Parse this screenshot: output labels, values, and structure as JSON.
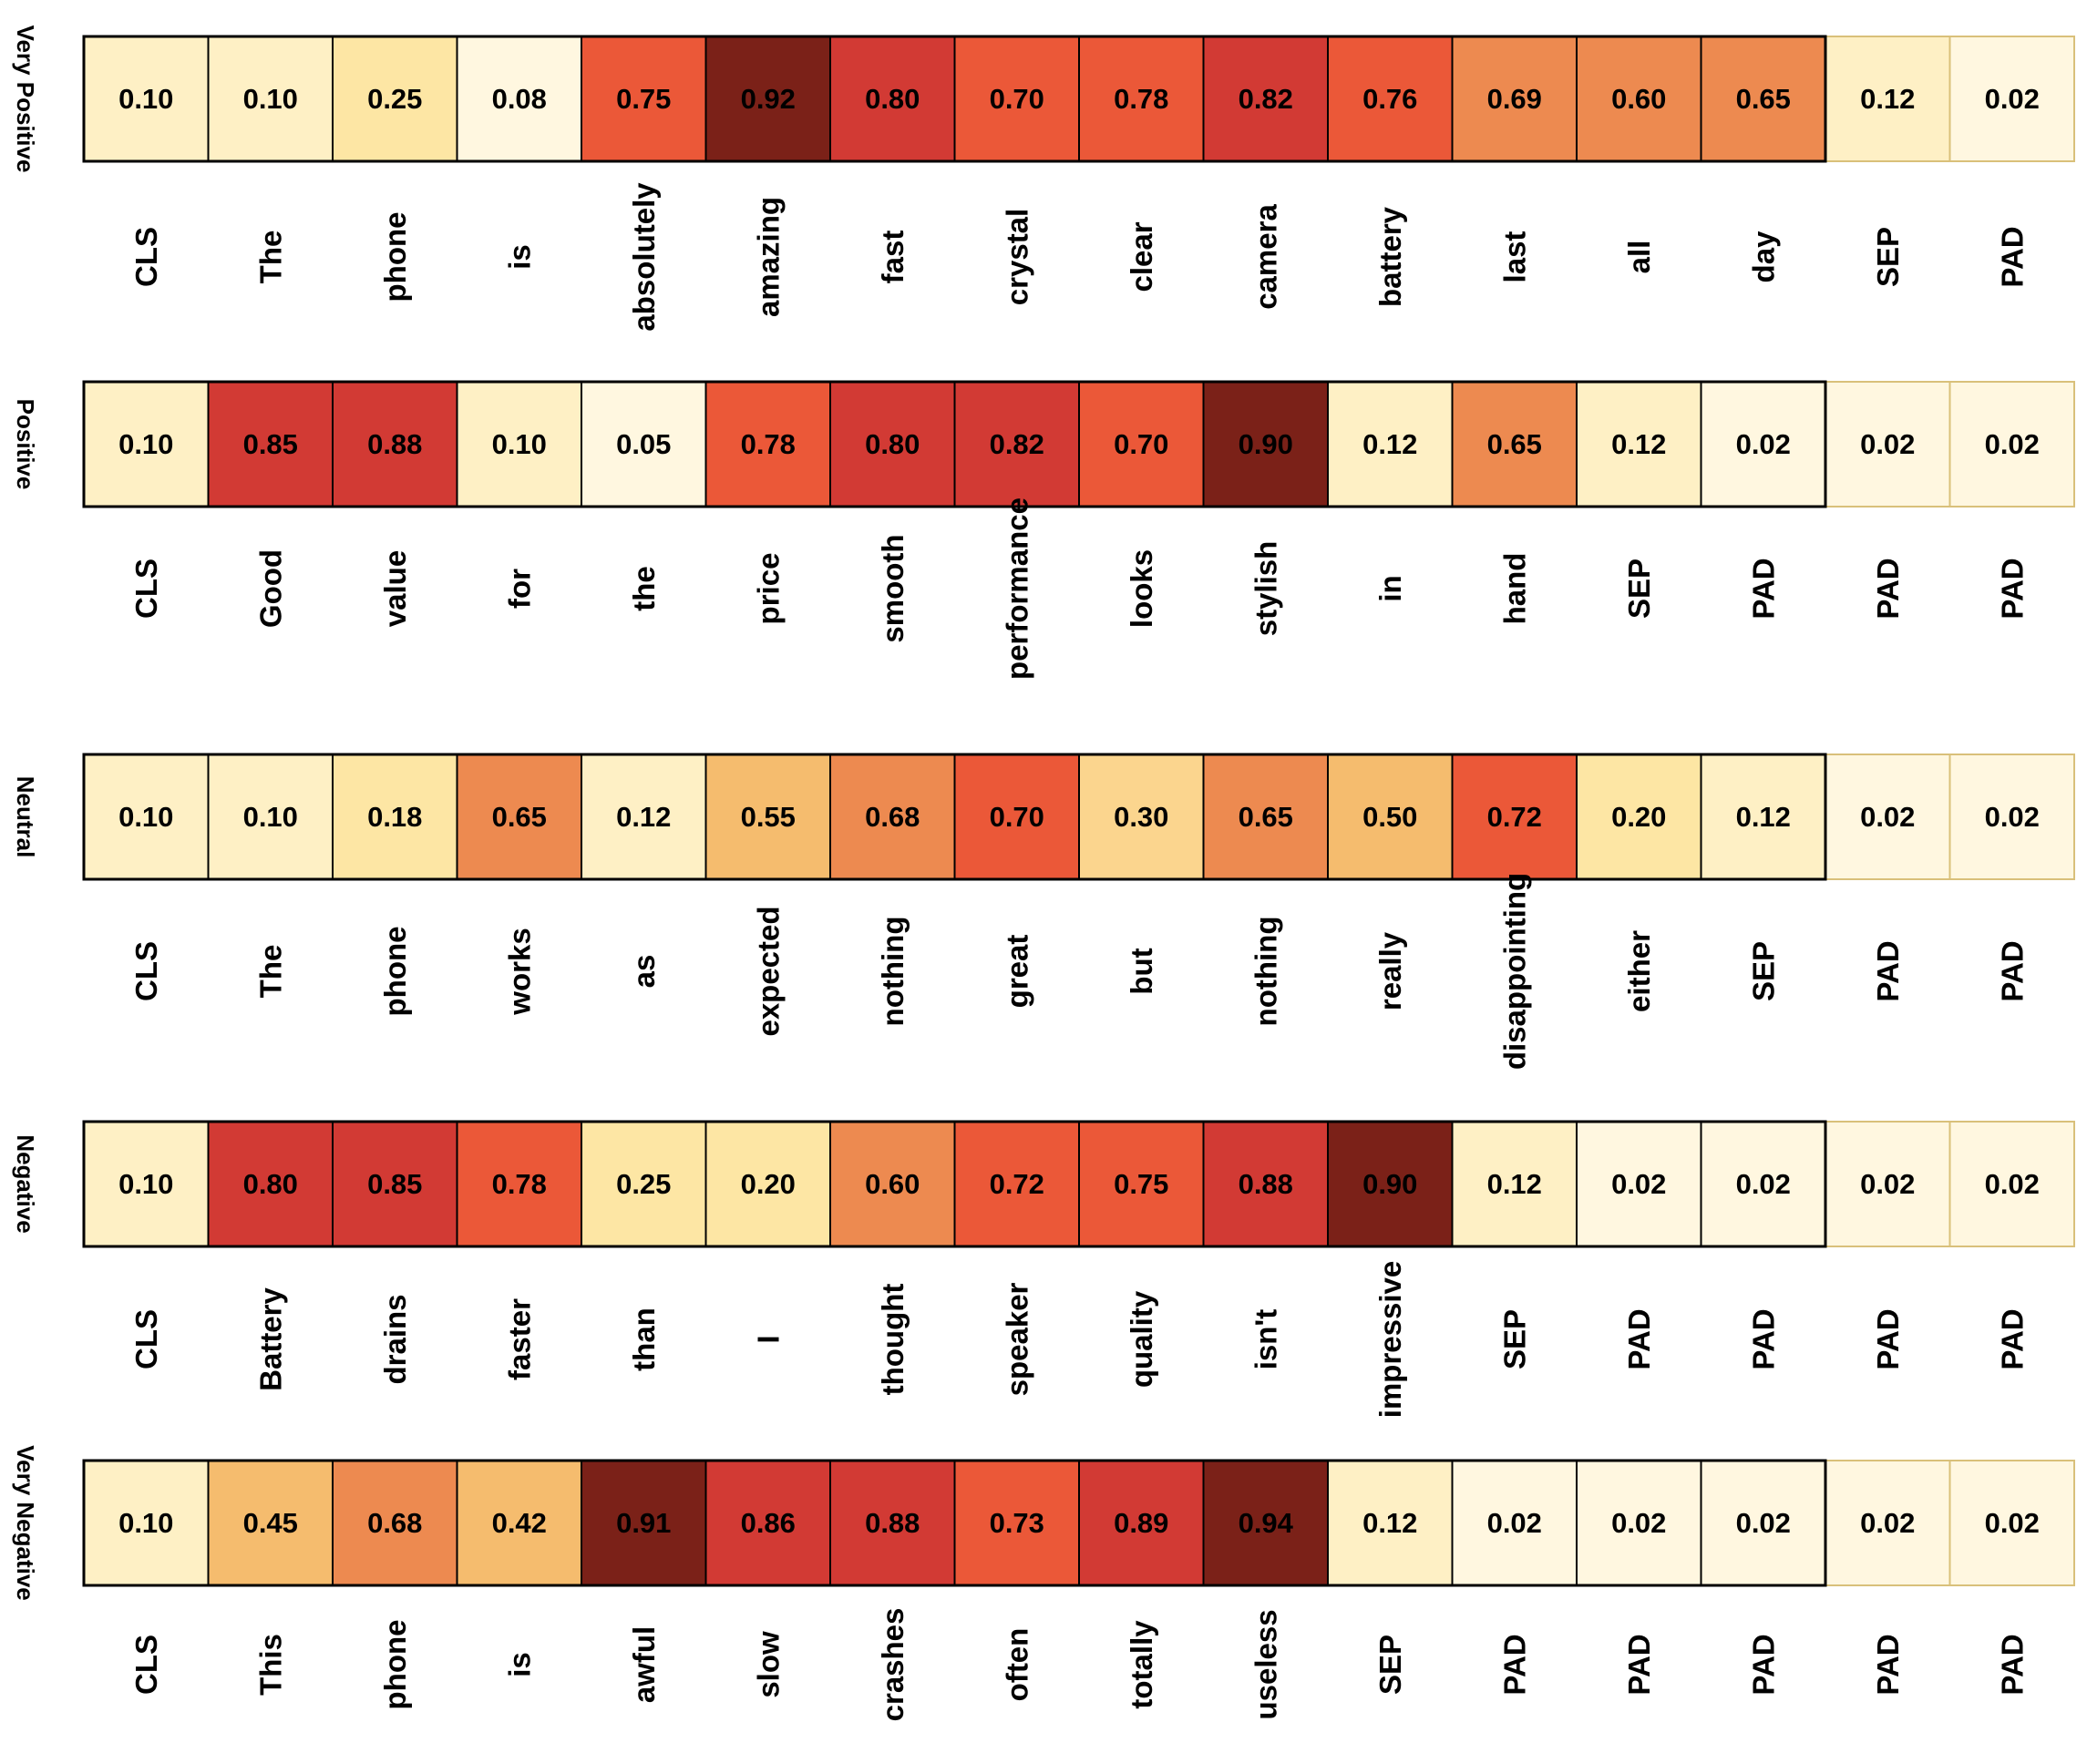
{
  "chart_data": {
    "type": "heatmap",
    "title": "",
    "colors": [
      "#fff7e0",
      "#fef0c5",
      "#fde6a4",
      "#fbd58e",
      "#f5bc6e",
      "#ed8a50",
      "#eb5838",
      "#d23a34",
      "#7b2118"
    ],
    "rows": [
      {
        "label": "Very Positive",
        "tokens": [
          "CLS",
          "The",
          "phone",
          "is",
          "absolutely",
          "amazing",
          "fast",
          "crystal",
          "clear",
          "camera",
          "battery",
          "last",
          "all",
          "day",
          "SEP",
          "PAD"
        ],
        "values": [
          0.1,
          0.1,
          0.25,
          0.08,
          0.75,
          0.92,
          0.8,
          0.7,
          0.78,
          0.82,
          0.76,
          0.69,
          0.6,
          0.65,
          0.12,
          0.02
        ],
        "display": [
          "0.10",
          "0.10",
          "0.25",
          "0.08",
          "0.75",
          "0.92",
          "0.80",
          "0.70",
          "0.78",
          "0.82",
          "0.76",
          "0.69",
          "0.60",
          "0.65",
          "0.12",
          "0.02"
        ],
        "outlined_cells": 14
      },
      {
        "label": "Positive",
        "tokens": [
          "CLS",
          "Good",
          "value",
          "for",
          "the",
          "price",
          "smooth",
          "performance",
          "looks",
          "stylish",
          "in",
          "hand",
          "SEP",
          "PAD",
          "PAD",
          "PAD"
        ],
        "values": [
          0.1,
          0.85,
          0.88,
          0.1,
          0.05,
          0.78,
          0.8,
          0.82,
          0.7,
          0.9,
          0.12,
          0.65,
          0.12,
          0.02,
          0.02,
          0.02
        ],
        "display": [
          "0.10",
          "0.85",
          "0.88",
          "0.10",
          "0.05",
          "0.78",
          "0.80",
          "0.82",
          "0.70",
          "0.90",
          "0.12",
          "0.65",
          "0.12",
          "0.02",
          "0.02",
          "0.02"
        ],
        "outlined_cells": 14
      },
      {
        "label": "Neutral",
        "tokens": [
          "CLS",
          "The",
          "phone",
          "works",
          "as",
          "expected",
          "nothing",
          "great",
          "but",
          "nothing",
          "really",
          "disappointing",
          "either",
          "SEP",
          "PAD",
          "PAD"
        ],
        "values": [
          0.1,
          0.1,
          0.18,
          0.65,
          0.12,
          0.55,
          0.68,
          0.7,
          0.3,
          0.65,
          0.5,
          0.72,
          0.2,
          0.12,
          0.02,
          0.02
        ],
        "display": [
          "0.10",
          "0.10",
          "0.18",
          "0.65",
          "0.12",
          "0.55",
          "0.68",
          "0.70",
          "0.30",
          "0.65",
          "0.50",
          "0.72",
          "0.20",
          "0.12",
          "0.02",
          "0.02"
        ],
        "outlined_cells": 14
      },
      {
        "label": "Negative",
        "tokens": [
          "CLS",
          "Battery",
          "drains",
          "faster",
          "than",
          "I",
          "thought",
          "speaker",
          "quality",
          "isn't",
          "impressive",
          "SEP",
          "PAD",
          "PAD",
          "PAD",
          "PAD"
        ],
        "values": [
          0.1,
          0.8,
          0.85,
          0.78,
          0.25,
          0.2,
          0.6,
          0.72,
          0.75,
          0.88,
          0.9,
          0.12,
          0.02,
          0.02,
          0.02,
          0.02
        ],
        "display": [
          "0.10",
          "0.80",
          "0.85",
          "0.78",
          "0.25",
          "0.20",
          "0.60",
          "0.72",
          "0.75",
          "0.88",
          "0.90",
          "0.12",
          "0.02",
          "0.02",
          "0.02",
          "0.02"
        ],
        "outlined_cells": 14
      },
      {
        "label": "Very Negative",
        "tokens": [
          "CLS",
          "This",
          "phone",
          "is",
          "awful",
          "slow",
          "crashes",
          "often",
          "totally",
          "useless",
          "SEP",
          "PAD",
          "PAD",
          "PAD",
          "PAD",
          "PAD"
        ],
        "values": [
          0.1,
          0.45,
          0.68,
          0.42,
          0.91,
          0.86,
          0.88,
          0.73,
          0.89,
          0.94,
          0.12,
          0.02,
          0.02,
          0.02,
          0.02,
          0.02
        ],
        "display": [
          "0.10",
          "0.45",
          "0.68",
          "0.42",
          "0.91",
          "0.86",
          "0.88",
          "0.73",
          "0.89",
          "0.94",
          "0.12",
          "0.02",
          "0.02",
          "0.02",
          "0.02",
          "0.02"
        ],
        "outlined_cells": 14
      }
    ]
  }
}
